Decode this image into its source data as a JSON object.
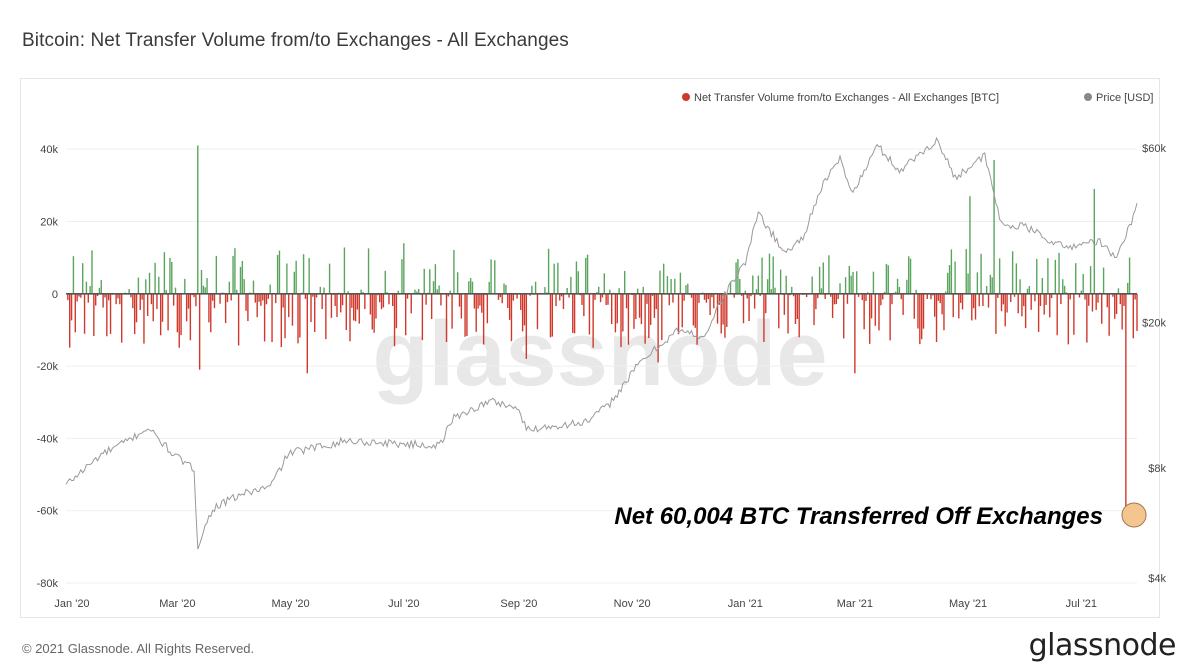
{
  "title": "Bitcoin: Net Transfer Volume from/to Exchanges - All Exchanges",
  "footer": "© 2021 Glassnode. All Rights Reserved.",
  "logo": "glassnode",
  "watermark": "glassnode",
  "annotation": "Net 60,004 BTC Transferred Off Exchanges",
  "colors": {
    "positive": "#5aa55e",
    "negative": "#d0382c",
    "price": "#9a9a9a",
    "zero_line": "#555555",
    "marker": "#f5c58f"
  },
  "chart_data": {
    "type": "bar+line",
    "series": [
      {
        "name": "Net Transfer Volume from/to Exchanges - All Exchanges [BTC]",
        "type": "bar",
        "axis": "left"
      },
      {
        "name": "Price [USD]",
        "type": "line",
        "axis": "right",
        "scale": "log"
      }
    ],
    "legend": [
      {
        "label": "Net Transfer Volume from/to Exchanges - All Exchanges [BTC]",
        "color": "#d0382c"
      },
      {
        "label": "Price [USD]",
        "color": "#888888"
      }
    ],
    "legend_position": "top-right",
    "x_ticks": [
      "Jan '20",
      "Mar '20",
      "May '20",
      "Jul '20",
      "Sep '20",
      "Nov '20",
      "Jan '21",
      "Mar '21",
      "May '21",
      "Jul '21"
    ],
    "x_range": [
      "2020-01-01",
      "2021-07-31"
    ],
    "y_left_ticks": [
      "40k",
      "20k",
      "0",
      "-20k",
      "-40k",
      "-60k",
      "-80k"
    ],
    "y_left_values": [
      40000,
      20000,
      0,
      -20000,
      -40000,
      -60000,
      -80000
    ],
    "y_left_range": [
      -80000,
      50000
    ],
    "y_right_ticks": [
      "$60k",
      "$20k",
      "$8k",
      "$4k"
    ],
    "y_right_values": [
      60000,
      20000,
      8000,
      4000
    ],
    "price_points": [
      [
        "2020-01-01",
        7200
      ],
      [
        "2020-01-20",
        8700
      ],
      [
        "2020-02-05",
        9600
      ],
      [
        "2020-02-14",
        10300
      ],
      [
        "2020-02-28",
        8700
      ],
      [
        "2020-03-10",
        7900
      ],
      [
        "2020-03-12",
        4900
      ],
      [
        "2020-03-20",
        6200
      ],
      [
        "2020-04-05",
        6800
      ],
      [
        "2020-04-20",
        7100
      ],
      [
        "2020-04-30",
        8800
      ],
      [
        "2020-05-10",
        9000
      ],
      [
        "2020-05-31",
        9500
      ],
      [
        "2020-06-15",
        9400
      ],
      [
        "2020-07-20",
        9200
      ],
      [
        "2020-07-28",
        11000
      ],
      [
        "2020-08-17",
        12200
      ],
      [
        "2020-08-31",
        11700
      ],
      [
        "2020-09-05",
        10200
      ],
      [
        "2020-10-08",
        10700
      ],
      [
        "2020-10-20",
        12000
      ],
      [
        "2020-11-05",
        15500
      ],
      [
        "2020-11-25",
        19000
      ],
      [
        "2020-12-10",
        18300
      ],
      [
        "2020-12-20",
        23500
      ],
      [
        "2021-01-01",
        29300
      ],
      [
        "2021-01-08",
        40000
      ],
      [
        "2021-01-22",
        31000
      ],
      [
        "2021-02-01",
        34000
      ],
      [
        "2021-02-10",
        46000
      ],
      [
        "2021-02-21",
        56000
      ],
      [
        "2021-02-28",
        45000
      ],
      [
        "2021-03-13",
        61000
      ],
      [
        "2021-03-25",
        52000
      ],
      [
        "2021-04-14",
        63000
      ],
      [
        "2021-04-24",
        50000
      ],
      [
        "2021-05-10",
        57000
      ],
      [
        "2021-05-19",
        37000
      ],
      [
        "2021-06-01",
        36500
      ],
      [
        "2021-06-22",
        32000
      ],
      [
        "2021-07-10",
        33500
      ],
      [
        "2021-07-20",
        29800
      ],
      [
        "2021-07-31",
        41500
      ]
    ],
    "net_flow_peaks": [
      [
        "2020-01-01",
        0
      ],
      [
        "2020-01-15",
        12000
      ],
      [
        "2020-03-12",
        41000
      ],
      [
        "2020-03-13",
        -21000
      ],
      [
        "2020-05-10",
        -22000
      ],
      [
        "2020-07-01",
        14000
      ],
      [
        "2020-09-05",
        -18000
      ],
      [
        "2020-11-15",
        -19000
      ],
      [
        "2021-01-10",
        10000
      ],
      [
        "2021-03-01",
        -22000
      ],
      [
        "2021-05-02",
        27000
      ],
      [
        "2021-05-15",
        37000
      ],
      [
        "2021-07-08",
        29000
      ],
      [
        "2021-07-25",
        -60004
      ]
    ],
    "final_value": -60004
  }
}
